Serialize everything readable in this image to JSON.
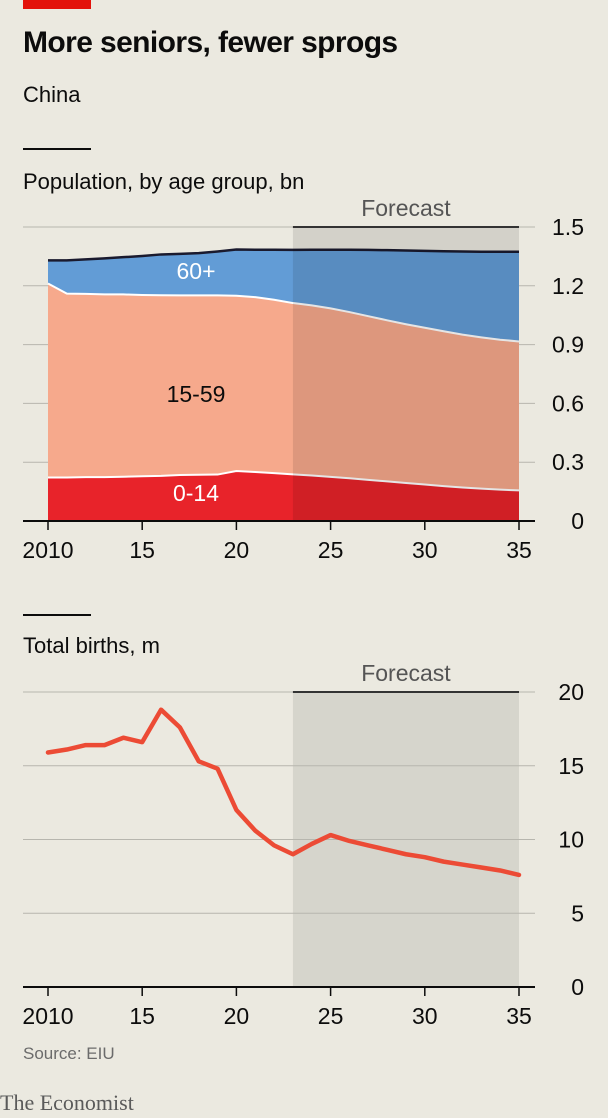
{
  "header": {
    "title": "More seniors, fewer sprogs",
    "subtitle": "China"
  },
  "footer": {
    "source": "Source: EIU",
    "brand": "The Economist"
  },
  "colors": {
    "age_0_14": "#e8232a",
    "age_15_59": "#f6a98c",
    "age_60_plus": "#629cd6",
    "births_line": "#ec4b35",
    "forecast_shade": "#d6d5cc",
    "brand_red": "#e3120b"
  },
  "chart_data": [
    {
      "type": "area",
      "title": "Population, by age group, bn",
      "x": [
        2010,
        2011,
        2012,
        2013,
        2014,
        2015,
        2016,
        2017,
        2018,
        2019,
        2020,
        2021,
        2022,
        2023,
        2024,
        2025,
        2026,
        2027,
        2028,
        2029,
        2030,
        2031,
        2032,
        2033,
        2034,
        2035
      ],
      "x_tick_values": [
        2010,
        2015,
        2020,
        2025,
        2030,
        2035
      ],
      "x_tick_labels": [
        "2010",
        "15",
        "20",
        "25",
        "30",
        "35"
      ],
      "y_ticks": [
        0,
        0.3,
        0.6,
        0.9,
        1.2,
        1.5
      ],
      "y_tick_labels": [
        "0",
        "0.3",
        "0.6",
        "0.9",
        "1.2",
        "1.5"
      ],
      "ylim": [
        0,
        1.5
      ],
      "stacked": true,
      "forecast": {
        "label": "Forecast",
        "from": 2023,
        "to": 2035
      },
      "series": [
        {
          "name": "0-14",
          "values": [
            0.222,
            0.222,
            0.224,
            0.224,
            0.226,
            0.228,
            0.23,
            0.235,
            0.236,
            0.237,
            0.255,
            0.25,
            0.244,
            0.238,
            0.232,
            0.225,
            0.218,
            0.21,
            0.202,
            0.194,
            0.186,
            0.178,
            0.171,
            0.165,
            0.16,
            0.156
          ]
        },
        {
          "name": "15-59",
          "values": [
            0.99,
            0.938,
            0.935,
            0.932,
            0.93,
            0.925,
            0.922,
            0.916,
            0.915,
            0.914,
            0.894,
            0.892,
            0.885,
            0.874,
            0.868,
            0.86,
            0.848,
            0.835,
            0.822,
            0.81,
            0.8,
            0.79,
            0.78,
            0.772,
            0.765,
            0.76
          ]
        },
        {
          "name": "60+",
          "values": [
            0.118,
            0.17,
            0.176,
            0.184,
            0.19,
            0.199,
            0.208,
            0.212,
            0.216,
            0.224,
            0.236,
            0.242,
            0.255,
            0.271,
            0.284,
            0.299,
            0.318,
            0.338,
            0.358,
            0.376,
            0.392,
            0.408,
            0.424,
            0.437,
            0.449,
            0.458
          ]
        }
      ]
    },
    {
      "type": "line",
      "title": "Total births, m",
      "x": [
        2010,
        2011,
        2012,
        2013,
        2014,
        2015,
        2016,
        2017,
        2018,
        2019,
        2020,
        2021,
        2022,
        2023,
        2024,
        2025,
        2026,
        2027,
        2028,
        2029,
        2030,
        2031,
        2032,
        2033,
        2034,
        2035
      ],
      "x_tick_values": [
        2010,
        2015,
        2020,
        2025,
        2030,
        2035
      ],
      "x_tick_labels": [
        "2010",
        "15",
        "20",
        "25",
        "30",
        "35"
      ],
      "y_ticks": [
        0,
        5,
        10,
        15,
        20
      ],
      "y_tick_labels": [
        "0",
        "5",
        "10",
        "15",
        "20"
      ],
      "ylim": [
        0,
        20
      ],
      "forecast": {
        "label": "Forecast",
        "from": 2023,
        "to": 2035
      },
      "series": [
        {
          "values": [
            15.9,
            16.1,
            16.4,
            16.4,
            16.9,
            16.6,
            18.8,
            17.6,
            15.3,
            14.8,
            12.0,
            10.6,
            9.6,
            9.0,
            9.7,
            10.3,
            9.9,
            9.6,
            9.3,
            9.0,
            8.8,
            8.5,
            8.3,
            8.1,
            7.9,
            7.6
          ]
        }
      ]
    }
  ]
}
